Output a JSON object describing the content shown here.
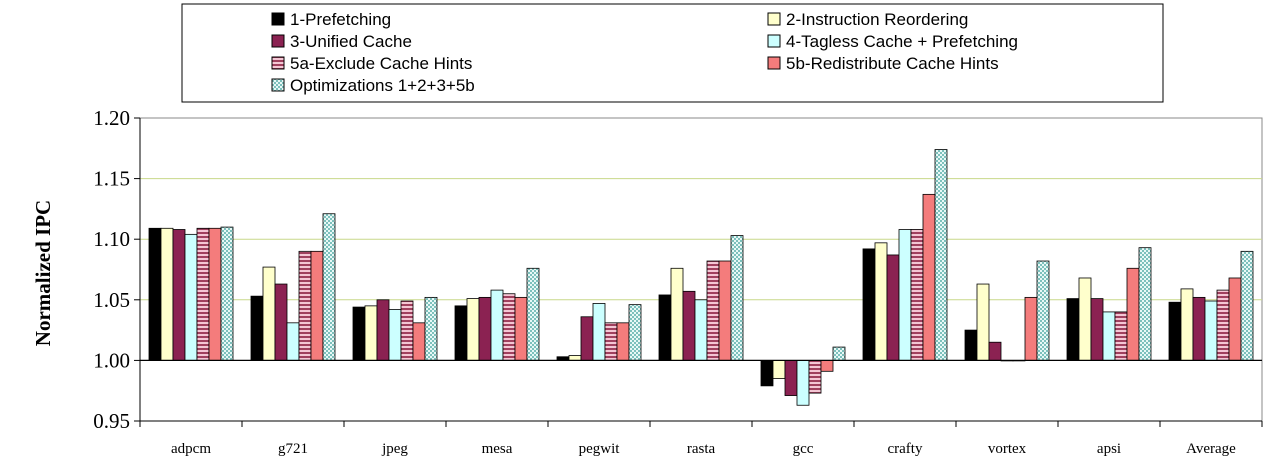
{
  "chart_data": {
    "type": "bar",
    "title": "",
    "xlabel": "",
    "ylabel": "Normalized IPC",
    "ylim": [
      0.95,
      1.2
    ],
    "yticks": [
      "0.95",
      "1.00",
      "1.05",
      "1.10",
      "1.15",
      "1.20"
    ],
    "grid": true,
    "legend_position": "top",
    "categories": [
      "adpcm",
      "g721",
      "jpeg",
      "mesa",
      "pegwit",
      "rasta",
      "gcc",
      "crafty",
      "vortex",
      "apsi",
      "Average"
    ],
    "series": [
      {
        "name": "1-Prefetching",
        "color": "#000000",
        "pattern": "solid",
        "values": [
          1.109,
          1.053,
          1.044,
          1.045,
          1.003,
          1.054,
          0.979,
          1.092,
          1.025,
          1.051,
          1.048
        ]
      },
      {
        "name": "2-Instruction Reordering",
        "color": "#ffffcc",
        "pattern": "solid",
        "values": [
          1.109,
          1.077,
          1.045,
          1.051,
          1.004,
          1.076,
          0.985,
          1.097,
          1.063,
          1.068,
          1.059
        ]
      },
      {
        "name": "3-Unified Cache",
        "color": "#8b2252",
        "pattern": "solid",
        "values": [
          1.108,
          1.063,
          1.05,
          1.052,
          1.036,
          1.057,
          0.971,
          1.087,
          1.015,
          1.051,
          1.052
        ]
      },
      {
        "name": "4-Tagless Cache + Prefetching",
        "color": "#ccffff",
        "pattern": "solid",
        "values": [
          1.104,
          1.031,
          1.042,
          1.058,
          1.047,
          1.05,
          0.963,
          1.108,
          1.0,
          1.04,
          1.049
        ]
      },
      {
        "name": "5a-Exclude Cache Hints",
        "color": "#c06080",
        "pattern": "hstripe",
        "values": [
          1.109,
          1.09,
          1.049,
          1.055,
          1.031,
          1.082,
          0.973,
          1.108,
          1.0,
          1.04,
          1.058
        ]
      },
      {
        "name": "5b-Redistribute Cache Hints",
        "color": "#f47c7c",
        "pattern": "solid",
        "values": [
          1.109,
          1.09,
          1.031,
          1.052,
          1.031,
          1.082,
          0.991,
          1.137,
          1.052,
          1.076,
          1.068
        ]
      },
      {
        "name": "Optimizations 1+2+3+5b",
        "color": "#b4e4e0",
        "pattern": "dots",
        "values": [
          1.11,
          1.121,
          1.052,
          1.076,
          1.046,
          1.103,
          1.011,
          1.174,
          1.082,
          1.093,
          1.09
        ]
      }
    ]
  }
}
